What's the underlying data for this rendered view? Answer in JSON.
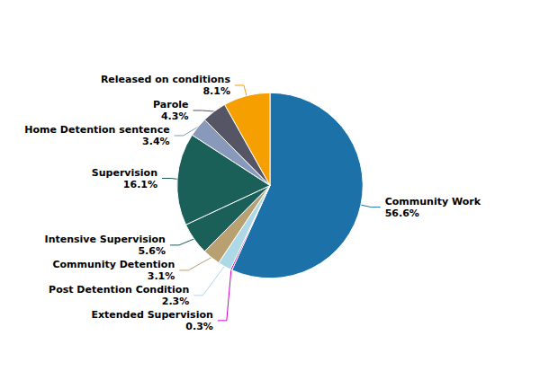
{
  "chart_data": {
    "type": "pie",
    "categories": [
      "Community Work",
      "Extended Supervision",
      "Post Detention Condition",
      "Community Detention",
      "Intensive Supervision",
      "Supervision",
      "Home Detention sentence",
      "Parole",
      "Released on conditions"
    ],
    "values": [
      56.6,
      0.3,
      2.3,
      3.1,
      5.6,
      16.1,
      3.4,
      4.3,
      8.1
    ],
    "value_labels": [
      "56.6%",
      "0.3%",
      "2.3%",
      "3.1%",
      "5.6%",
      "16.1%",
      "3.4%",
      "4.3%",
      "8.1%"
    ],
    "colors": [
      "#1C72A8",
      "#CC00CC",
      "#ADD8E6",
      "#B8A070",
      "#1A5F58",
      "#1A5F58",
      "#8899BB",
      "#555566",
      "#F5A000"
    ],
    "data_labels": true
  }
}
